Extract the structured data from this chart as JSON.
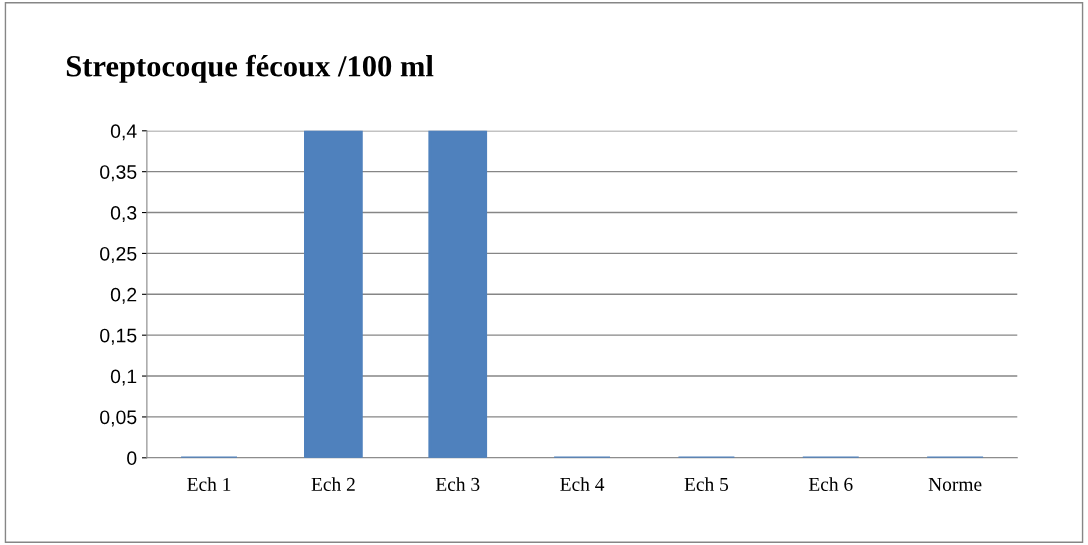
{
  "chart_data": {
    "type": "bar",
    "title": "Streptocoque fécoux /100 ml",
    "categories": [
      "Ech 1",
      "Ech 2",
      "Ech 3",
      "Ech 4",
      "Ech 5",
      "Ech 6",
      "Norme"
    ],
    "values": [
      0,
      0.4,
      0.4,
      0,
      0,
      0,
      0
    ],
    "color": "#4f81bd",
    "ylim": [
      0,
      0.4
    ],
    "yticks": [
      {
        "value": 0,
        "label": "0"
      },
      {
        "value": 0.05,
        "label": "0,05"
      },
      {
        "value": 0.1,
        "label": "0,1"
      },
      {
        "value": 0.15,
        "label": "0,15"
      },
      {
        "value": 0.2,
        "label": "0,2"
      },
      {
        "value": 0.25,
        "label": "0,25"
      },
      {
        "value": 0.3,
        "label": "0,3"
      },
      {
        "value": 0.35,
        "label": "0,35"
      },
      {
        "value": 0.4,
        "label": "0,4"
      }
    ],
    "grid": "y",
    "legend": false
  }
}
